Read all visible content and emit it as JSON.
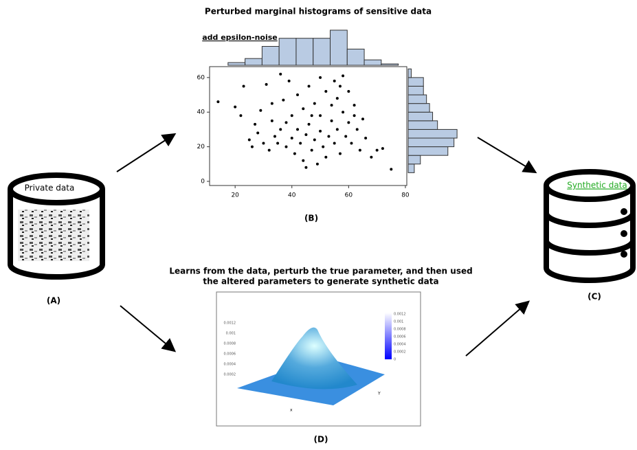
{
  "header": {
    "title": "Perturbed marginal histograms of sensitive data",
    "noise_label": "add epsilon-noise"
  },
  "nodes": {
    "private": {
      "label": "Private data",
      "caption": "(A)"
    },
    "synthetic": {
      "label": "Synthetic data",
      "caption": "(C)"
    },
    "histograms": {
      "caption": "(B)"
    },
    "model": {
      "text_line1": "Learns from the data, perturb the true parameter, and then used",
      "text_line2": "the altered parameters to generate synthetic data",
      "caption": "(D)",
      "zticks": [
        "0.0012",
        "0.001",
        "0.0008",
        "0.0006",
        "0.0004",
        "0.0002"
      ],
      "colorbar_ticks": [
        "0.0012",
        "0.001",
        "0.0008",
        "0.0006",
        "0.0004",
        "0.0002",
        "0"
      ],
      "x_axis": "x",
      "y_axis": "Y"
    }
  },
  "chart_data": {
    "type": "scatter",
    "x": [
      14,
      20,
      22,
      23,
      25,
      26,
      27,
      28,
      29,
      30,
      31,
      32,
      33,
      34,
      35,
      36,
      36,
      37,
      38,
      39,
      40,
      40,
      41,
      42,
      42,
      43,
      44,
      44,
      45,
      46,
      46,
      47,
      48,
      48,
      49,
      50,
      50,
      51,
      52,
      52,
      53,
      54,
      54,
      55,
      55,
      56,
      56,
      57,
      58,
      58,
      59,
      60,
      60,
      61,
      62,
      63,
      64,
      65,
      66,
      68,
      70,
      72,
      75,
      45,
      38,
      33,
      50,
      57,
      62,
      47
    ],
    "y": [
      46,
      43,
      38,
      55,
      24,
      20,
      33,
      28,
      41,
      22,
      56,
      18,
      35,
      26,
      22,
      30,
      62,
      47,
      20,
      58,
      25,
      38,
      16,
      30,
      50,
      22,
      12,
      42,
      27,
      33,
      55,
      18,
      24,
      45,
      10,
      29,
      38,
      20,
      52,
      14,
      26,
      35,
      44,
      58,
      22,
      30,
      48,
      16,
      40,
      61,
      26,
      52,
      34,
      22,
      44,
      30,
      18,
      36,
      25,
      14,
      18,
      19,
      7,
      8,
      34,
      45,
      60,
      55,
      38,
      38
    ],
    "xlim": [
      11,
      80.5
    ],
    "ylim": [
      -2.4,
      66.3
    ],
    "xticks": [
      20,
      40,
      60,
      80
    ],
    "yticks": [
      0,
      20,
      40,
      60
    ],
    "top_hist": {
      "bins": [
        17.5,
        23.5,
        29.5,
        35.5,
        41.5,
        47.5,
        53.5,
        59.5,
        65.5,
        71.5,
        77.5
      ],
      "counts": [
        2,
        5,
        14,
        20,
        20,
        20,
        26,
        12,
        4,
        1
      ],
      "ylim": [
        0,
        28
      ]
    },
    "right_hist": {
      "bins": [
        5,
        10,
        15,
        20,
        25,
        30,
        35,
        40,
        45,
        50,
        55,
        60,
        65
      ],
      "counts": [
        10,
        20,
        65,
        75,
        80,
        48,
        40,
        35,
        30,
        25,
        25,
        5
      ],
      "xlim": [
        0,
        90
      ]
    }
  }
}
